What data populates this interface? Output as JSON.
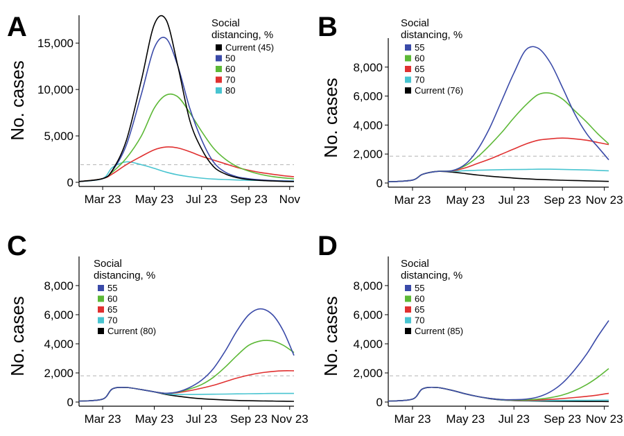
{
  "chart_data": [
    {
      "panel": "A",
      "type": "line",
      "ylabel": "No. cases",
      "xlabel": "",
      "x_ticks": [
        "Mar 23",
        "May 23",
        "Jul 23",
        "Sep 23",
        "Nov"
      ],
      "y_ticks": [
        "0",
        "5,000",
        "10,000",
        "15,000"
      ],
      "ylim": [
        0,
        18000
      ],
      "threshold": 1900,
      "legend_title_lines": [
        "Social",
        "distancing, %"
      ],
      "x": [
        "Mar 1",
        "Mar 23",
        "Apr 1",
        "Apr 15",
        "May 1",
        "May 15",
        "Jun 1",
        "Jun 15",
        "Jul 1",
        "Jul 15",
        "Aug 1",
        "Aug 15",
        "Sep 1",
        "Sep 15",
        "Oct 1",
        "Oct 15",
        "Nov 1",
        "Nov 15"
      ],
      "series": [
        {
          "name": "Current (45)",
          "color": "#000000",
          "values": [
            80,
            400,
            1300,
            4500,
            11000,
            17000,
            17500,
            12500,
            6700,
            3600,
            1700,
            900,
            500,
            300,
            200,
            140,
            100,
            80
          ]
        },
        {
          "name": "50",
          "color": "#3a4aa8",
          "values": [
            80,
            400,
            1250,
            4000,
            9500,
            14500,
            15500,
            12500,
            8000,
            4600,
            2200,
            1100,
            600,
            380,
            260,
            190,
            140,
            110
          ]
        },
        {
          "name": "60",
          "color": "#5cb836",
          "values": [
            80,
            400,
            1100,
            2600,
            5000,
            8000,
            9400,
            9200,
            7500,
            5500,
            3700,
            2500,
            1700,
            1200,
            850,
            620,
            480,
            380
          ]
        },
        {
          "name": "70",
          "color": "#e03030",
          "values": [
            80,
            400,
            900,
            1900,
            2800,
            3500,
            3800,
            3700,
            3300,
            2800,
            2400,
            2000,
            1600,
            1300,
            1050,
            870,
            720,
            600
          ]
        },
        {
          "name": "80",
          "color": "#48c4d0",
          "values": [
            80,
            400,
            1600,
            2200,
            1900,
            1500,
            1100,
            800,
            600,
            450,
            350,
            300,
            250,
            220,
            200,
            180,
            160,
            140
          ]
        }
      ]
    },
    {
      "panel": "B",
      "type": "line",
      "ylabel": "No. cases",
      "xlabel": "",
      "x_ticks": [
        "Mar 23",
        "May 23",
        "Jul 23",
        "Sep 23",
        "Nov 23"
      ],
      "y_ticks": [
        "0",
        "2,000",
        "4,000",
        "6,000",
        "8,000"
      ],
      "ylim": [
        0,
        10000
      ],
      "threshold": 1850,
      "legend_title_lines": [
        "Social",
        "distancing, %"
      ],
      "x": [
        "Mar 1",
        "Mar 23",
        "Apr 1",
        "Apr 15",
        "May 1",
        "May 15",
        "Jun 1",
        "Jun 15",
        "Jul 1",
        "Jul 15",
        "Aug 1",
        "Aug 15",
        "Sep 1",
        "Sep 15",
        "Oct 1",
        "Oct 15",
        "Nov 1",
        "Nov 23"
      ],
      "series": [
        {
          "name": "55",
          "color": "#3a4aa8",
          "values": [
            80,
            200,
            600,
            800,
            850,
            1300,
            2300,
            3800,
            5700,
            7600,
            9200,
            9300,
            8300,
            6600,
            4800,
            3400,
            2500,
            1600
          ]
        },
        {
          "name": "60",
          "color": "#5cb836",
          "values": [
            80,
            200,
            600,
            800,
            850,
            1200,
            1800,
            2600,
            3500,
            4500,
            5400,
            6100,
            6200,
            5800,
            5000,
            4200,
            3400,
            2700
          ]
        },
        {
          "name": "65",
          "color": "#e03030",
          "values": [
            80,
            200,
            600,
            800,
            830,
            1050,
            1350,
            1650,
            2000,
            2350,
            2700,
            2950,
            3050,
            3100,
            3050,
            2950,
            2800,
            2650
          ]
        },
        {
          "name": "70",
          "color": "#48c4d0",
          "values": [
            80,
            200,
            600,
            800,
            800,
            850,
            880,
            900,
            920,
            930,
            940,
            950,
            950,
            940,
            920,
            900,
            870,
            840
          ]
        },
        {
          "name": "Current (76)",
          "color": "#000000",
          "values": [
            80,
            200,
            600,
            800,
            750,
            650,
            550,
            470,
            400,
            340,
            290,
            250,
            220,
            190,
            170,
            150,
            130,
            110
          ]
        }
      ]
    },
    {
      "panel": "C",
      "type": "line",
      "ylabel": "No. cases",
      "xlabel": "",
      "x_ticks": [
        "Mar 23",
        "May 23",
        "Jul 23",
        "Sep 23",
        "Nov 23"
      ],
      "y_ticks": [
        "0",
        "2,000",
        "4,000",
        "6,000",
        "8,000"
      ],
      "ylim": [
        0,
        10000
      ],
      "threshold": 1800,
      "legend_title_lines": [
        "Social",
        "distancing, %"
      ],
      "x": [
        "Mar 1",
        "Mar 23",
        "Apr 1",
        "Apr 15",
        "May 1",
        "May 15",
        "Jun 1",
        "Jun 15",
        "Jul 1",
        "Jul 15",
        "Aug 1",
        "Aug 15",
        "Sep 1",
        "Sep 15",
        "Oct 1",
        "Oct 15",
        "Nov 1",
        "Nov 23"
      ],
      "series": [
        {
          "name": "55",
          "color": "#3a4aa8",
          "values": [
            60,
            200,
            900,
            1000,
            850,
            700,
            600,
            700,
            1000,
            1500,
            2300,
            3500,
            4900,
            6000,
            6400,
            6000,
            4900,
            3200
          ]
        },
        {
          "name": "60",
          "color": "#5cb836",
          "values": [
            60,
            200,
            900,
            1000,
            850,
            700,
            600,
            680,
            900,
            1200,
            1700,
            2400,
            3200,
            3900,
            4200,
            4200,
            3900,
            3400
          ]
        },
        {
          "name": "65",
          "color": "#e03030",
          "values": [
            60,
            200,
            900,
            1000,
            850,
            700,
            600,
            650,
            780,
            950,
            1150,
            1400,
            1650,
            1850,
            2000,
            2100,
            2150,
            2150
          ]
        },
        {
          "name": "70",
          "color": "#48c4d0",
          "values": [
            60,
            200,
            900,
            1000,
            850,
            700,
            560,
            520,
            520,
            530,
            540,
            550,
            560,
            570,
            580,
            590,
            590,
            590
          ]
        },
        {
          "name": "Current (80)",
          "color": "#000000",
          "values": [
            60,
            200,
            900,
            1000,
            850,
            700,
            520,
            400,
            300,
            230,
            180,
            140,
            110,
            90,
            75,
            65,
            55,
            50
          ]
        }
      ]
    },
    {
      "panel": "D",
      "type": "line",
      "ylabel": "No. cases",
      "xlabel": "",
      "x_ticks": [
        "Mar 23",
        "May 23",
        "Jul 23",
        "Sep 23",
        "Nov 23"
      ],
      "y_ticks": [
        "0",
        "2,000",
        "4,000",
        "6,000",
        "8,000"
      ],
      "ylim": [
        0,
        10000
      ],
      "threshold": 1800,
      "legend_title_lines": [
        "Social",
        "distancing, %"
      ],
      "x": [
        "Mar 1",
        "Mar 23",
        "Apr 1",
        "Apr 15",
        "May 1",
        "May 15",
        "Jun 1",
        "Jun 15",
        "Jul 1",
        "Jul 15",
        "Aug 1",
        "Aug 15",
        "Sep 1",
        "Sep 15",
        "Oct 1",
        "Oct 15",
        "Nov 1",
        "Nov 23"
      ],
      "series": [
        {
          "name": "55",
          "color": "#3a4aa8",
          "values": [
            60,
            200,
            900,
            1000,
            800,
            560,
            380,
            250,
            170,
            160,
            200,
            350,
            700,
            1300,
            2200,
            3300,
            4500,
            5600
          ]
        },
        {
          "name": "60",
          "color": "#5cb836",
          "values": [
            60,
            200,
            900,
            1000,
            800,
            560,
            380,
            250,
            170,
            140,
            150,
            200,
            300,
            480,
            780,
            1200,
            1700,
            2300
          ]
        },
        {
          "name": "65",
          "color": "#e03030",
          "values": [
            60,
            200,
            900,
            1000,
            800,
            560,
            380,
            250,
            160,
            120,
            120,
            140,
            180,
            240,
            310,
            390,
            480,
            600
          ]
        },
        {
          "name": "70",
          "color": "#48c4d0",
          "values": [
            60,
            200,
            900,
            1000,
            800,
            560,
            380,
            240,
            150,
            110,
            100,
            100,
            105,
            110,
            115,
            120,
            125,
            130
          ]
        },
        {
          "name": "Current (85)",
          "color": "#000000",
          "values": [
            60,
            200,
            900,
            1000,
            800,
            560,
            380,
            230,
            140,
            100,
            80,
            65,
            55,
            50,
            45,
            40,
            38,
            35
          ]
        }
      ]
    }
  ]
}
